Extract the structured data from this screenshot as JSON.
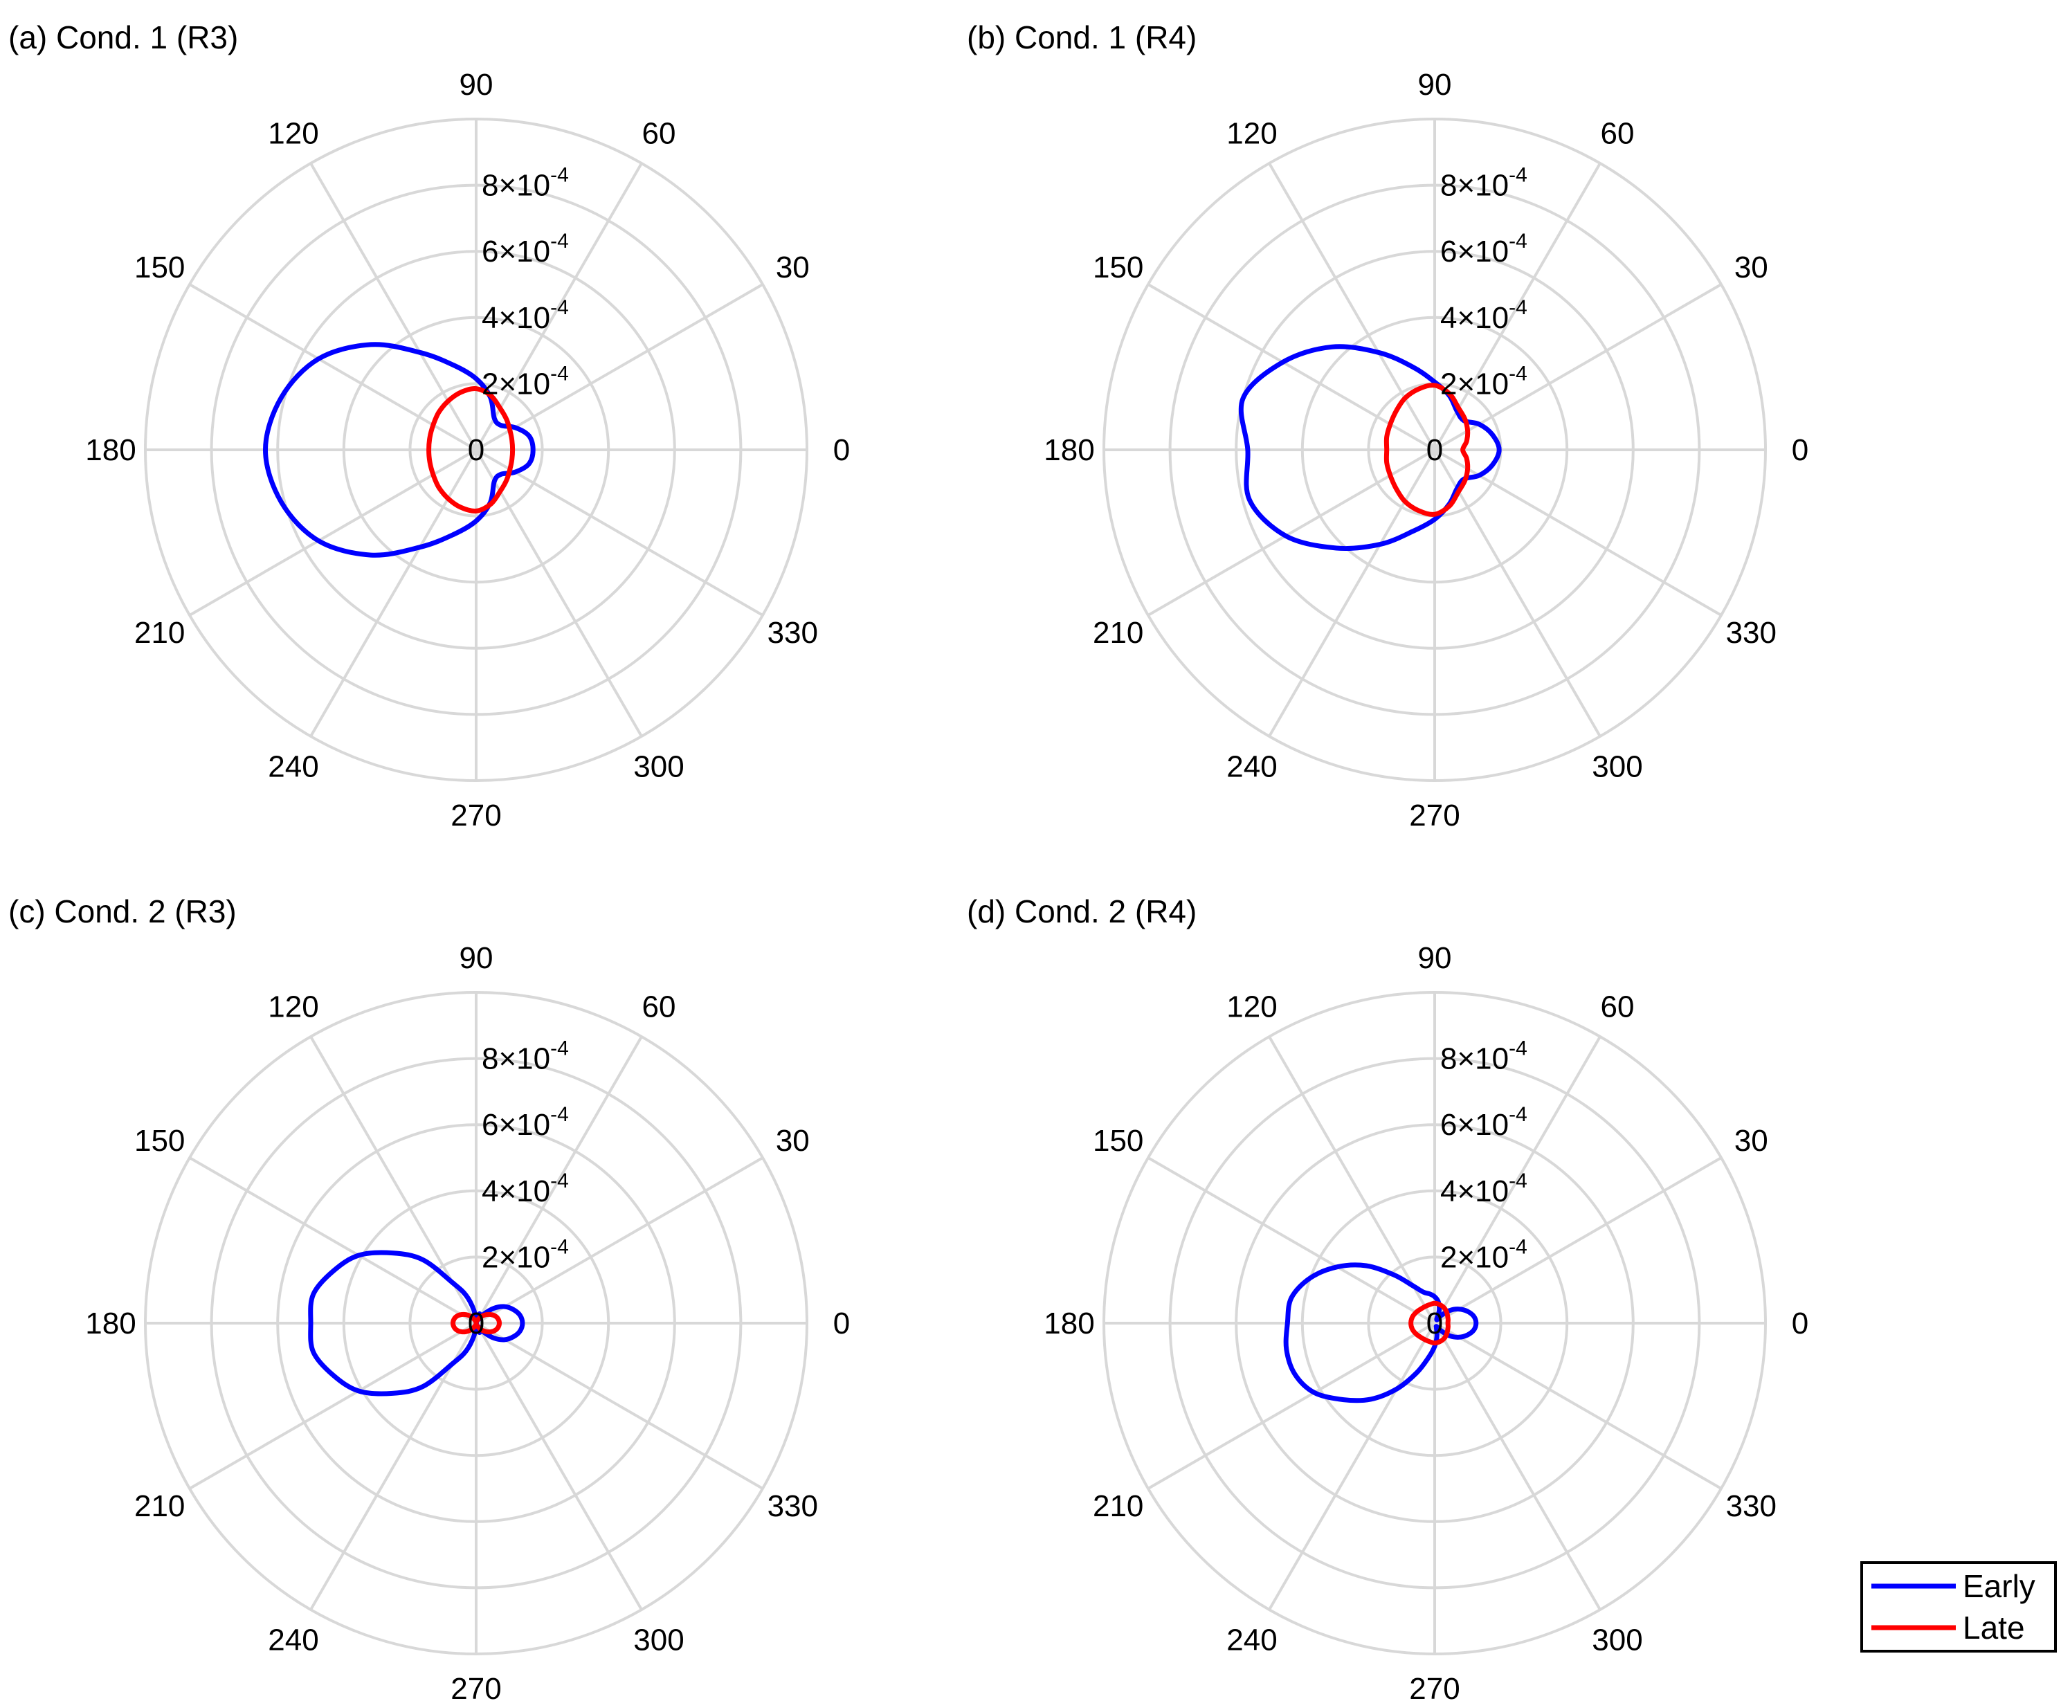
{
  "chart_data": [
    {
      "type": "polar",
      "title": "(a) Cond. 1 (R3)",
      "r_range": [
        0,
        0.001
      ],
      "r_ticks": [
        {
          "value": 0,
          "label": "0"
        },
        {
          "value": 0.0002,
          "label": "2×10⁻⁴"
        },
        {
          "value": 0.0004,
          "label": "4×10⁻⁴"
        },
        {
          "value": 0.0006,
          "label": "6×10⁻⁴"
        },
        {
          "value": 0.0008,
          "label": "8×10⁻⁴"
        }
      ],
      "theta_ticks": [
        0,
        30,
        60,
        90,
        120,
        150,
        180,
        210,
        240,
        270,
        300,
        330
      ],
      "series": [
        {
          "name": "Early",
          "color": "#0000ff",
          "theta_deg": [
            0,
            15,
            30,
            45,
            60,
            75,
            90,
            105,
            120,
            135,
            150,
            165,
            180,
            195,
            210,
            225,
            240,
            255,
            270,
            285,
            300,
            315,
            330,
            345
          ],
          "r": [
            0.000172,
            0.000165,
            0.000135,
            0.000105,
            0.00011,
            0.000165,
            0.000215,
            0.000265,
            0.00034,
            0.00045,
            0.00055,
            0.00061,
            0.000637,
            0.00061,
            0.00055,
            0.00045,
            0.00034,
            0.000265,
            0.000215,
            0.000165,
            0.00011,
            0.000105,
            0.000135,
            0.000165
          ]
        },
        {
          "name": "Late",
          "color": "#ff0000",
          "theta_deg": [
            0,
            15,
            30,
            45,
            60,
            75,
            90,
            105,
            120,
            135,
            150,
            165,
            180,
            195,
            210,
            225,
            240,
            255,
            270,
            285,
            300,
            315,
            330,
            345
          ],
          "r": [
            0.00011,
            0.000112,
            0.000118,
            0.00013,
            0.000145,
            0.00017,
            0.000185,
            0.00018,
            0.00017,
            0.00016,
            0.00015,
            0.000145,
            0.000143,
            0.000145,
            0.00015,
            0.00016,
            0.00017,
            0.00018,
            0.000185,
            0.00017,
            0.000145,
            0.00013,
            0.000118,
            0.000112
          ]
        }
      ]
    },
    {
      "type": "polar",
      "title": "(b) Cond. 1 (R4)",
      "r_range": [
        0,
        0.001
      ],
      "r_ticks": [
        {
          "value": 0,
          "label": "0"
        },
        {
          "value": 0.0002,
          "label": "2×10⁻⁴"
        },
        {
          "value": 0.0004,
          "label": "4×10⁻⁴"
        },
        {
          "value": 0.0006,
          "label": "6×10⁻⁴"
        },
        {
          "value": 0.0008,
          "label": "8×10⁻⁴"
        }
      ],
      "theta_ticks": [
        0,
        30,
        60,
        90,
        120,
        150,
        180,
        210,
        240,
        270,
        300,
        330
      ],
      "series": [
        {
          "name": "Early",
          "color": "#0000ff",
          "theta_deg": [
            0,
            15,
            30,
            45,
            60,
            75,
            90,
            105,
            120,
            135,
            150,
            165,
            180,
            195,
            210,
            225,
            240,
            255,
            270,
            285,
            300,
            315,
            330,
            345
          ],
          "r": [
            0.000195,
            0.00018,
            0.000155,
            0.000125,
            0.000135,
            0.00017,
            0.000205,
            0.00026,
            0.00034,
            0.00044,
            0.00053,
            0.0006,
            0.000565,
            0.00058,
            0.00052,
            0.00042,
            0.00033,
            0.000255,
            0.00021,
            0.00017,
            0.000135,
            0.000125,
            0.000155,
            0.00018
          ]
        },
        {
          "name": "Late",
          "color": "#ff0000",
          "theta_deg": [
            0,
            15,
            30,
            45,
            60,
            75,
            90,
            105,
            120,
            135,
            150,
            165,
            180,
            195,
            210,
            225,
            240,
            255,
            270,
            285,
            300,
            315,
            330,
            345
          ],
          "r": [
            8.5e-05,
            0.0001,
            0.000115,
            0.00013,
            0.000145,
            0.000175,
            0.000195,
            0.00019,
            0.00018,
            0.000165,
            0.000155,
            0.00015,
            0.000145,
            0.00015,
            0.000155,
            0.000165,
            0.00018,
            0.00019,
            0.000195,
            0.000175,
            0.000145,
            0.00013,
            0.000115,
            0.0001
          ]
        }
      ]
    },
    {
      "type": "polar",
      "title": "(c) Cond. 2 (R3)",
      "r_range": [
        0,
        0.001
      ],
      "r_ticks": [
        {
          "value": 0,
          "label": "0"
        },
        {
          "value": 0.0002,
          "label": "2×10⁻⁴"
        },
        {
          "value": 0.0004,
          "label": "4×10⁻⁴"
        },
        {
          "value": 0.0006,
          "label": "6×10⁻⁴"
        },
        {
          "value": 0.0008,
          "label": "8×10⁻⁴"
        }
      ],
      "theta_ticks": [
        0,
        30,
        60,
        90,
        120,
        150,
        180,
        210,
        240,
        270,
        300,
        330
      ],
      "series": [
        {
          "name": "Early",
          "color": "#0000ff",
          "theta_deg": [
            0,
            10,
            20,
            30,
            40,
            50,
            60,
            70,
            80,
            90,
            100,
            110,
            120,
            130,
            140,
            150,
            160,
            170,
            180,
            190,
            200,
            210,
            220,
            230,
            240,
            250,
            260,
            270,
            280,
            290,
            300,
            310,
            320,
            330,
            340,
            350
          ],
          "r": [
            0.00014,
            0.000135,
            0.00012,
            0.0001,
            7e-05,
            3.5e-05,
            1.2e-05,
            3e-05,
            1.5e-05,
            0.0,
            4e-05,
            9e-05,
            0.00014,
            0.00025,
            0.00033,
            0.00041,
            0.00046,
            0.0005,
            0.0005,
            0.0005,
            0.00046,
            0.00041,
            0.00033,
            0.00025,
            0.00014,
            9e-05,
            4e-05,
            0.0,
            1.5e-05,
            3e-05,
            1.2e-05,
            3.5e-05,
            7e-05,
            0.0001,
            0.00012,
            0.000135
          ]
        },
        {
          "name": "Late",
          "color": "#ff0000",
          "theta_deg": [
            0,
            10,
            20,
            30,
            40,
            50,
            60,
            70,
            80,
            90,
            100,
            110,
            120,
            130,
            140,
            150,
            160,
            170,
            180,
            190,
            200,
            210,
            220,
            230,
            240,
            250,
            260,
            270,
            280,
            290,
            300,
            310,
            320,
            330,
            340,
            350
          ],
          "r": [
            7e-05,
            6.8e-05,
            6.2e-05,
            5.2e-05,
            4e-05,
            2.8e-05,
            1.6e-05,
            8e-06,
            3e-06,
            0.0,
            3e-06,
            8e-06,
            1.6e-05,
            2.8e-05,
            4e-05,
            5.2e-05,
            6.2e-05,
            6.8e-05,
            7e-05,
            6.8e-05,
            6.2e-05,
            5.2e-05,
            4e-05,
            2.8e-05,
            1.6e-05,
            8e-06,
            3e-06,
            0.0,
            3e-06,
            8e-06,
            1.6e-05,
            2.8e-05,
            4e-05,
            5.2e-05,
            6.2e-05,
            6.8e-05
          ]
        }
      ]
    },
    {
      "type": "polar",
      "title": "(d) Cond. 2 (R4)",
      "r_range": [
        0,
        0.001
      ],
      "r_ticks": [
        {
          "value": 0,
          "label": "0"
        },
        {
          "value": 0.0002,
          "label": "2×10⁻⁴"
        },
        {
          "value": 0.0004,
          "label": "4×10⁻⁴"
        },
        {
          "value": 0.0006,
          "label": "6×10⁻⁴"
        },
        {
          "value": 0.0008,
          "label": "8×10⁻⁴"
        }
      ],
      "theta_ticks": [
        0,
        30,
        60,
        90,
        120,
        150,
        180,
        210,
        240,
        270,
        300,
        330
      ],
      "series": [
        {
          "name": "Early",
          "color": "#0000ff",
          "theta_deg": [
            0,
            10,
            20,
            30,
            40,
            50,
            60,
            70,
            80,
            90,
            100,
            110,
            120,
            130,
            140,
            150,
            160,
            170,
            180,
            190,
            200,
            210,
            220,
            230,
            240,
            250,
            260,
            270,
            280,
            290,
            300,
            310,
            320,
            330,
            340,
            350
          ],
          "r": [
            0.000125,
            0.00012,
            0.000105,
            8.5e-05,
            6e-05,
            3e-05,
            1.2e-05,
            4e-05,
            6.5e-05,
            8e-05,
            9e-05,
            0.0001,
            0.00013,
            0.00019,
            0.00027,
            0.00034,
            0.0004,
            0.00044,
            0.000445,
            0.000455,
            0.00045,
            0.00042,
            0.00036,
            0.0003,
            0.00023,
            0.00016,
            0.000105,
            7e-05,
            4e-05,
            1.5e-05,
            1.2e-05,
            3e-05,
            6e-05,
            8.5e-05,
            0.000105,
            0.00012
          ]
        },
        {
          "name": "Late",
          "color": "#ff0000",
          "theta_deg": [
            0,
            15,
            30,
            45,
            60,
            75,
            90,
            105,
            120,
            135,
            150,
            165,
            180,
            195,
            210,
            225,
            240,
            255,
            270,
            285,
            300,
            315,
            330,
            345
          ],
          "r": [
            4e-05,
            4.2e-05,
            4.5e-05,
            5e-05,
            5.5e-05,
            5.8e-05,
            6e-05,
            5.8e-05,
            5.8e-05,
            6e-05,
            6.5e-05,
            7e-05,
            7.2e-05,
            7e-05,
            6.5e-05,
            6e-05,
            5.8e-05,
            5.8e-05,
            6e-05,
            5.8e-05,
            5.5e-05,
            5e-05,
            4.5e-05,
            4.2e-05
          ]
        }
      ]
    }
  ],
  "legend": {
    "position": "bottom-right",
    "entries": [
      {
        "label": "Early",
        "color": "#0000ff"
      },
      {
        "label": "Late",
        "color": "#ff0000"
      }
    ]
  }
}
